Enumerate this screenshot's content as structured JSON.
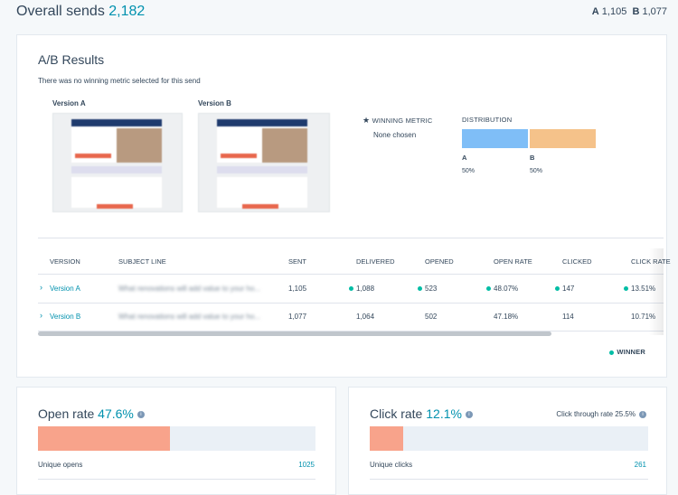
{
  "header": {
    "title": "Overall sends",
    "total": "2,182",
    "a_label": "A",
    "a_value": "1,105",
    "b_label": "B",
    "b_value": "1,077"
  },
  "ab_results": {
    "title": "A/B Results",
    "note": "There was no winning metric selected for this send",
    "versions": [
      "Version A",
      "Version B"
    ],
    "winning_metric": {
      "label": "WINNING METRIC",
      "value": "None chosen"
    },
    "distribution": {
      "label": "DISTRIBUTION",
      "items": [
        {
          "name": "A",
          "share": "50%",
          "color": "#7fbef7"
        },
        {
          "name": "B",
          "share": "50%",
          "color": "#f5c28a"
        }
      ]
    },
    "table": {
      "columns": [
        "VERSION",
        "SUBJECT LINE",
        "SENT",
        "DELIVERED",
        "OPENED",
        "OPEN RATE",
        "CLICKED",
        "CLICK RATE"
      ],
      "rows": [
        {
          "cells": [
            "Version A",
            "What renovations will add value to your ho...",
            "1,105",
            "1,088",
            "523",
            "48.07%",
            "147",
            "13.51%"
          ],
          "winners": [
            3,
            4,
            5,
            6,
            7
          ]
        },
        {
          "cells": [
            "Version B",
            "What renovations will add value to your ho...",
            "1,077",
            "1,064",
            "502",
            "47.18%",
            "114",
            "10.71%"
          ],
          "winners": []
        }
      ],
      "legend": "WINNER"
    }
  },
  "open_rate": {
    "label": "Open rate",
    "value": "47.6%",
    "metric": "Unique opens",
    "count": "1025"
  },
  "click_rate": {
    "label": "Click rate",
    "value": "12.1%",
    "extra": "Click through rate 25.5%",
    "metric": "Unique clicks",
    "count": "261"
  }
}
